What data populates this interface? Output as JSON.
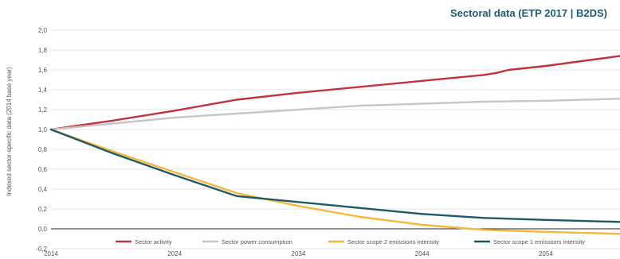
{
  "chart_data": {
    "type": "line",
    "title": "Sectoral data (ETP 2017 | B2DS)",
    "xlabel": "",
    "ylabel": "Indexed sector-specific data (2014 base year)",
    "xlim": [
      2014,
      2060
    ],
    "ylim": [
      -0.2,
      2.0
    ],
    "x_ticks": [
      "2014",
      "2024",
      "2034",
      "2044",
      "2054"
    ],
    "y_ticks": [
      "-0,2",
      "0,0",
      "0,2",
      "0,4",
      "0,6",
      "0,8",
      "1,0",
      "1,2",
      "1,4",
      "1,6",
      "1,8",
      "2,0"
    ],
    "grid": true,
    "legend_position": "bottom",
    "series": [
      {
        "name": "Sector activity",
        "color": "#c0343b",
        "points": [
          [
            2014,
            1.0
          ],
          [
            2019,
            1.09
          ],
          [
            2024,
            1.19
          ],
          [
            2029,
            1.3
          ],
          [
            2034,
            1.37
          ],
          [
            2039,
            1.43
          ],
          [
            2044,
            1.49
          ],
          [
            2049,
            1.55
          ],
          [
            2050,
            1.57
          ],
          [
            2051,
            1.6
          ],
          [
            2054,
            1.64
          ],
          [
            2060,
            1.74
          ]
        ]
      },
      {
        "name": "Sector power consumption",
        "color": "#c6c6c6",
        "points": [
          [
            2014,
            1.0
          ],
          [
            2019,
            1.06
          ],
          [
            2024,
            1.12
          ],
          [
            2029,
            1.16
          ],
          [
            2034,
            1.2
          ],
          [
            2039,
            1.24
          ],
          [
            2044,
            1.26
          ],
          [
            2049,
            1.28
          ],
          [
            2054,
            1.29
          ],
          [
            2060,
            1.31
          ]
        ]
      },
      {
        "name": "Sector scope 2 emissions intensity",
        "color": "#f5b73b",
        "points": [
          [
            2014,
            1.0
          ],
          [
            2019,
            0.78
          ],
          [
            2024,
            0.57
          ],
          [
            2029,
            0.36
          ],
          [
            2034,
            0.23
          ],
          [
            2039,
            0.12
          ],
          [
            2044,
            0.04
          ],
          [
            2049,
            -0.01
          ],
          [
            2054,
            -0.03
          ],
          [
            2060,
            -0.05
          ]
        ]
      },
      {
        "name": "Sector scope 1 emissions intensity",
        "color": "#1d5a66",
        "points": [
          [
            2014,
            1.0
          ],
          [
            2019,
            0.76
          ],
          [
            2024,
            0.54
          ],
          [
            2029,
            0.33
          ],
          [
            2034,
            0.27
          ],
          [
            2039,
            0.21
          ],
          [
            2044,
            0.15
          ],
          [
            2049,
            0.11
          ],
          [
            2054,
            0.09
          ],
          [
            2060,
            0.07
          ]
        ]
      }
    ]
  }
}
